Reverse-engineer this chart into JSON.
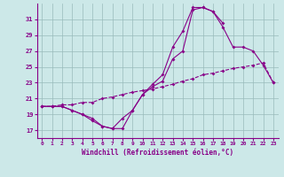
{
  "xlabel": "Windchill (Refroidissement éolien,°C)",
  "bg_color": "#cce8e8",
  "line_color": "#880088",
  "xlim": [
    -0.5,
    23.5
  ],
  "ylim": [
    16,
    33
  ],
  "xticks": [
    0,
    1,
    2,
    3,
    4,
    5,
    6,
    7,
    8,
    9,
    10,
    11,
    12,
    13,
    14,
    15,
    16,
    17,
    18,
    19,
    20,
    21,
    22,
    23
  ],
  "yticks": [
    17,
    19,
    21,
    23,
    25,
    27,
    29,
    31
  ],
  "grid_color": "#99bbbb",
  "curve1_x": [
    0,
    1,
    2,
    3,
    4,
    5,
    6,
    7,
    8,
    9,
    10,
    11,
    12,
    13,
    14,
    15,
    16,
    17,
    18,
    19,
    20,
    21,
    22,
    23
  ],
  "curve1_y": [
    20,
    20,
    20,
    19.5,
    19.0,
    18.2,
    17.5,
    17.2,
    18.5,
    19.5,
    21.5,
    22.5,
    23.2,
    26.0,
    27.0,
    32.2,
    32.5,
    32.0,
    30.0,
    27.5,
    27.5,
    27.0,
    25.2,
    23.0
  ],
  "curve2_x": [
    0,
    1,
    2,
    3,
    4,
    5,
    6,
    7,
    8,
    9,
    10,
    11,
    12,
    13,
    14,
    15,
    16,
    17,
    18
  ],
  "curve2_y": [
    20,
    20,
    20,
    19.5,
    19.0,
    18.5,
    17.5,
    17.2,
    17.2,
    19.5,
    21.5,
    22.8,
    24.0,
    27.5,
    29.5,
    32.5,
    32.5,
    32.0,
    30.5
  ],
  "curve3_x": [
    0,
    1,
    2,
    3,
    4,
    5,
    6,
    7,
    8,
    9,
    10,
    11,
    12,
    13,
    14,
    15,
    16,
    17,
    18,
    19,
    20,
    21,
    22,
    23
  ],
  "curve3_y": [
    20.0,
    20.0,
    20.2,
    20.2,
    20.5,
    20.5,
    21.0,
    21.2,
    21.5,
    21.8,
    22.0,
    22.2,
    22.5,
    22.8,
    23.2,
    23.5,
    24.0,
    24.2,
    24.5,
    24.8,
    25.0,
    25.2,
    25.5,
    23.0
  ]
}
